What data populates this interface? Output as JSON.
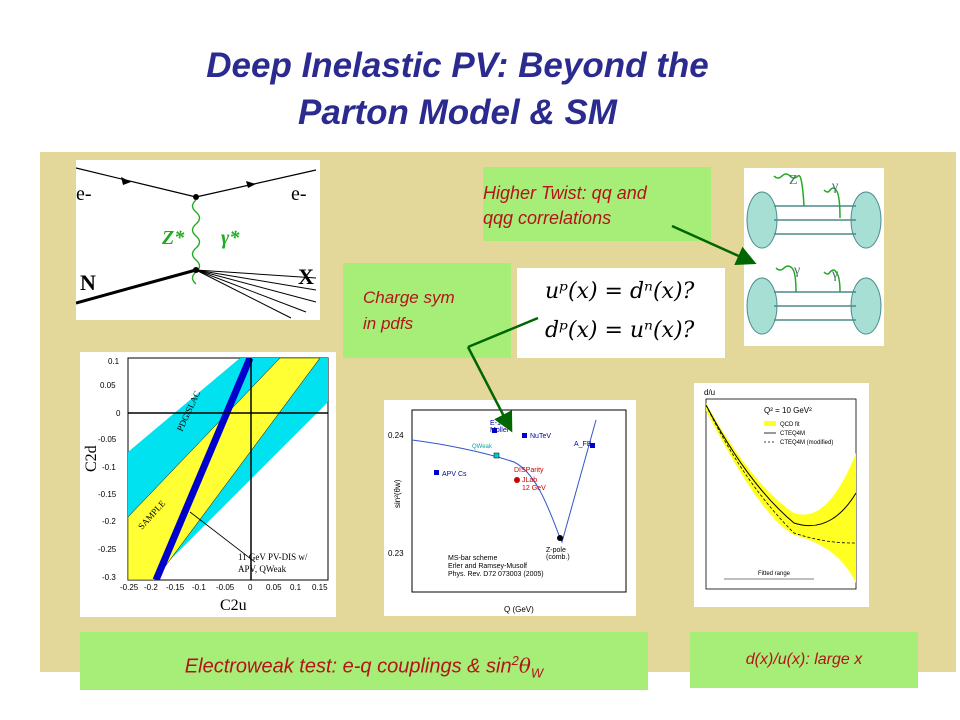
{
  "slide": {
    "title_line1": "Deep Inelastic PV: Beyond the",
    "title_line2": "Parton Model & SM",
    "colors": {
      "title": "#2b2b8f",
      "panel": "#e3d79a",
      "note_bg": "#a6ee77",
      "note_text": "#b3141b"
    }
  },
  "feynman": {
    "e_in": "e-",
    "e_out": "e-",
    "z_boson": "Z*",
    "photon": "γ*",
    "nucleon": "N",
    "final_state": "X"
  },
  "notes": {
    "higher_twist_1": "Higher Twist:  qq and",
    "higher_twist_2": "qqg correlations",
    "charge_sym_1": "Charge sym",
    "charge_sym_2": "in pdfs",
    "electroweak_prefix": "Electroweak test: e-q couplings & sin",
    "electroweak_exp": "2",
    "electroweak_theta": "θ",
    "electroweak_sub": "W",
    "dux": "d(x)/u(x):  large x"
  },
  "equations": {
    "eq1": "uᵖ(x) = dⁿ(x)?",
    "eq2": "dᵖ(x) = uⁿ(x)?"
  },
  "higher_twist_diagram": {
    "top_z": "Z",
    "top_gamma": "γ",
    "bottom_gamma1": "γ",
    "bottom_gamma2": "γ"
  },
  "c2_plot": {
    "xlabel": "C2u",
    "ylabel": "C2d",
    "xticks": [
      "-0.25",
      "-0.2",
      "-0.15",
      "-0.1",
      "-0.05",
      "0",
      "0.05",
      "0.1",
      "0.15"
    ],
    "yticks": [
      "0.1",
      "0.05",
      "0",
      "-0.05",
      "-0.1",
      "-0.15",
      "-0.2",
      "-0.25",
      "-0.3"
    ],
    "band_pdg": "PDG/SLAC",
    "band_sample": "SAMPLE",
    "annot1": "11 GeV PV-DIS w/",
    "annot2": "APV, QWeak"
  },
  "sin2_plot": {
    "ylabel": "sin²(θw)",
    "y_top": "0.24",
    "y_bottom": "0.23",
    "xlabel": "Q (GeV)",
    "labels": [
      "E-158",
      "Moller",
      "NuTeV",
      "QWeak",
      "APV Cs",
      "DISParity",
      "JLab",
      "12 GeV",
      "A_FB",
      "Z-pole",
      "(comb.)"
    ],
    "scheme1": "MS-bar scheme",
    "scheme2": "Erler and Ramsey-Musolf",
    "scheme3": "Phys. Rev. D72 073003 (2005)"
  },
  "du_plot": {
    "ylabel": "d/u",
    "q2": "Q² = 10 GeV²",
    "legend": [
      "QCD fit",
      "CTEQ4M",
      "CTEQ4M (modified)"
    ],
    "range_label": "Fitted range"
  }
}
